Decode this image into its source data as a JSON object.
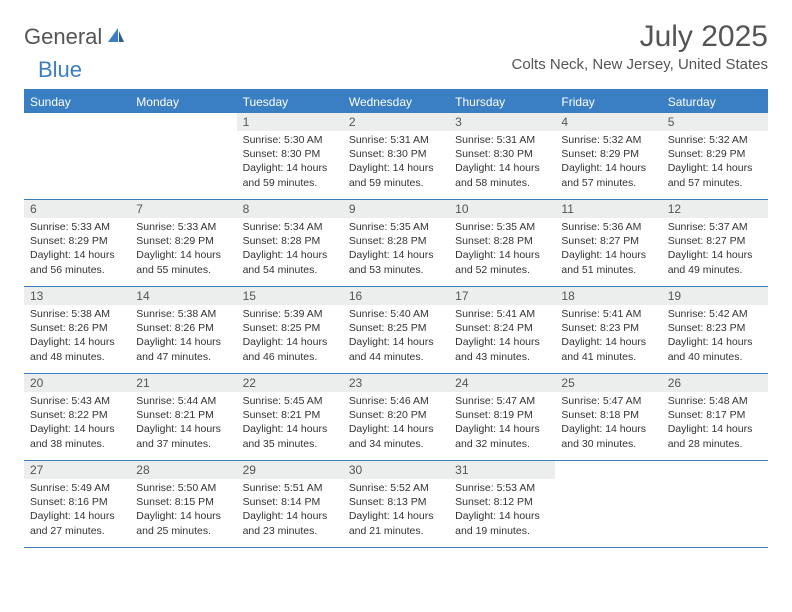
{
  "logo": {
    "text1": "General",
    "text2": "Blue"
  },
  "title": "July 2025",
  "location": "Colts Neck, New Jersey, United States",
  "colors": {
    "brand": "#3a7fc4",
    "header_bg": "#eceded",
    "text": "#333333",
    "muted": "#555555"
  },
  "weekdays": [
    "Sunday",
    "Monday",
    "Tuesday",
    "Wednesday",
    "Thursday",
    "Friday",
    "Saturday"
  ],
  "weeks": [
    [
      null,
      null,
      {
        "n": "1",
        "sr": "5:30 AM",
        "ss": "8:30 PM",
        "dl": "14 hours and 59 minutes."
      },
      {
        "n": "2",
        "sr": "5:31 AM",
        "ss": "8:30 PM",
        "dl": "14 hours and 59 minutes."
      },
      {
        "n": "3",
        "sr": "5:31 AM",
        "ss": "8:30 PM",
        "dl": "14 hours and 58 minutes."
      },
      {
        "n": "4",
        "sr": "5:32 AM",
        "ss": "8:29 PM",
        "dl": "14 hours and 57 minutes."
      },
      {
        "n": "5",
        "sr": "5:32 AM",
        "ss": "8:29 PM",
        "dl": "14 hours and 57 minutes."
      }
    ],
    [
      {
        "n": "6",
        "sr": "5:33 AM",
        "ss": "8:29 PM",
        "dl": "14 hours and 56 minutes."
      },
      {
        "n": "7",
        "sr": "5:33 AM",
        "ss": "8:29 PM",
        "dl": "14 hours and 55 minutes."
      },
      {
        "n": "8",
        "sr": "5:34 AM",
        "ss": "8:28 PM",
        "dl": "14 hours and 54 minutes."
      },
      {
        "n": "9",
        "sr": "5:35 AM",
        "ss": "8:28 PM",
        "dl": "14 hours and 53 minutes."
      },
      {
        "n": "10",
        "sr": "5:35 AM",
        "ss": "8:28 PM",
        "dl": "14 hours and 52 minutes."
      },
      {
        "n": "11",
        "sr": "5:36 AM",
        "ss": "8:27 PM",
        "dl": "14 hours and 51 minutes."
      },
      {
        "n": "12",
        "sr": "5:37 AM",
        "ss": "8:27 PM",
        "dl": "14 hours and 49 minutes."
      }
    ],
    [
      {
        "n": "13",
        "sr": "5:38 AM",
        "ss": "8:26 PM",
        "dl": "14 hours and 48 minutes."
      },
      {
        "n": "14",
        "sr": "5:38 AM",
        "ss": "8:26 PM",
        "dl": "14 hours and 47 minutes."
      },
      {
        "n": "15",
        "sr": "5:39 AM",
        "ss": "8:25 PM",
        "dl": "14 hours and 46 minutes."
      },
      {
        "n": "16",
        "sr": "5:40 AM",
        "ss": "8:25 PM",
        "dl": "14 hours and 44 minutes."
      },
      {
        "n": "17",
        "sr": "5:41 AM",
        "ss": "8:24 PM",
        "dl": "14 hours and 43 minutes."
      },
      {
        "n": "18",
        "sr": "5:41 AM",
        "ss": "8:23 PM",
        "dl": "14 hours and 41 minutes."
      },
      {
        "n": "19",
        "sr": "5:42 AM",
        "ss": "8:23 PM",
        "dl": "14 hours and 40 minutes."
      }
    ],
    [
      {
        "n": "20",
        "sr": "5:43 AM",
        "ss": "8:22 PM",
        "dl": "14 hours and 38 minutes."
      },
      {
        "n": "21",
        "sr": "5:44 AM",
        "ss": "8:21 PM",
        "dl": "14 hours and 37 minutes."
      },
      {
        "n": "22",
        "sr": "5:45 AM",
        "ss": "8:21 PM",
        "dl": "14 hours and 35 minutes."
      },
      {
        "n": "23",
        "sr": "5:46 AM",
        "ss": "8:20 PM",
        "dl": "14 hours and 34 minutes."
      },
      {
        "n": "24",
        "sr": "5:47 AM",
        "ss": "8:19 PM",
        "dl": "14 hours and 32 minutes."
      },
      {
        "n": "25",
        "sr": "5:47 AM",
        "ss": "8:18 PM",
        "dl": "14 hours and 30 minutes."
      },
      {
        "n": "26",
        "sr": "5:48 AM",
        "ss": "8:17 PM",
        "dl": "14 hours and 28 minutes."
      }
    ],
    [
      {
        "n": "27",
        "sr": "5:49 AM",
        "ss": "8:16 PM",
        "dl": "14 hours and 27 minutes."
      },
      {
        "n": "28",
        "sr": "5:50 AM",
        "ss": "8:15 PM",
        "dl": "14 hours and 25 minutes."
      },
      {
        "n": "29",
        "sr": "5:51 AM",
        "ss": "8:14 PM",
        "dl": "14 hours and 23 minutes."
      },
      {
        "n": "30",
        "sr": "5:52 AM",
        "ss": "8:13 PM",
        "dl": "14 hours and 21 minutes."
      },
      {
        "n": "31",
        "sr": "5:53 AM",
        "ss": "8:12 PM",
        "dl": "14 hours and 19 minutes."
      },
      null,
      null
    ]
  ],
  "labels": {
    "sunrise": "Sunrise: ",
    "sunset": "Sunset: ",
    "daylight": "Daylight: "
  }
}
